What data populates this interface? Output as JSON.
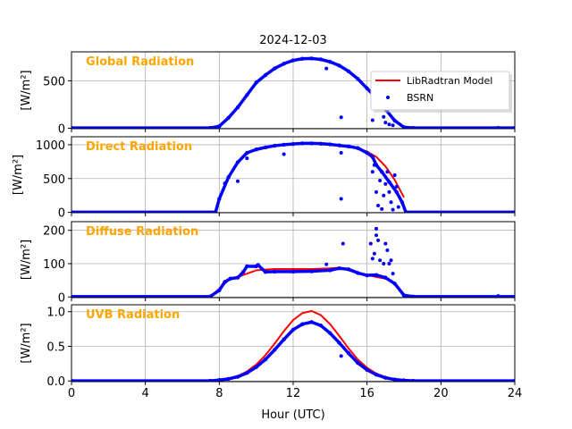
{
  "chart_data": {
    "type": "scatter",
    "title": "2024-12-03",
    "xlabel": "Hour (UTC)",
    "xlim": [
      0,
      24
    ],
    "xticks": [
      0,
      4,
      8,
      12,
      16,
      20,
      24
    ],
    "xtick_labels": [
      "0",
      "4",
      "8",
      "12",
      "16",
      "20",
      "24"
    ],
    "grid": true,
    "legend": {
      "placement": "upper-right of first panel",
      "entries": [
        "LibRadtran Model",
        "BSRN"
      ]
    },
    "colors": {
      "model": "#ff0000",
      "bsrn": "#0000ff",
      "panel_label": "#ffa500"
    },
    "panels": [
      {
        "name": "Global Radiation",
        "ylabel": "[W/m²]",
        "ylim": [
          -5,
          805
        ],
        "yticks": [
          0,
          500
        ],
        "ytick_labels": [
          "0",
          "500"
        ],
        "model": [
          [
            7.5,
            0
          ],
          [
            8,
            20
          ],
          [
            8.5,
            110
          ],
          [
            9,
            220
          ],
          [
            9.5,
            350
          ],
          [
            10,
            480
          ],
          [
            10.5,
            560
          ],
          [
            11,
            630
          ],
          [
            11.5,
            680
          ],
          [
            12,
            715
          ],
          [
            12.5,
            732
          ],
          [
            13,
            735
          ],
          [
            13.5,
            725
          ],
          [
            14,
            700
          ],
          [
            14.5,
            660
          ],
          [
            15,
            600
          ],
          [
            15.5,
            520
          ],
          [
            16,
            420
          ],
          [
            16.5,
            320
          ],
          [
            17,
            200
          ],
          [
            17.5,
            90
          ],
          [
            18,
            15
          ],
          [
            18.5,
            0
          ]
        ],
        "bsrn": [
          [
            0,
            3
          ],
          [
            7.5,
            3
          ],
          [
            8,
            20
          ],
          [
            8.5,
            110
          ],
          [
            9,
            220
          ],
          [
            9.5,
            350
          ],
          [
            10,
            480
          ],
          [
            10.5,
            560
          ],
          [
            11,
            630
          ],
          [
            11.5,
            680
          ],
          [
            12,
            715
          ],
          [
            12.5,
            732
          ],
          [
            13,
            735
          ],
          [
            13.5,
            725
          ],
          [
            14,
            700
          ],
          [
            14.5,
            660
          ],
          [
            15,
            600
          ],
          [
            15.5,
            520
          ],
          [
            16,
            420
          ],
          [
            16.5,
            320
          ],
          [
            17,
            200
          ],
          [
            17.5,
            80
          ],
          [
            18,
            10
          ],
          [
            18.5,
            3
          ],
          [
            24,
            3
          ]
        ],
        "bsrn_outliers": [
          [
            13.8,
            630
          ],
          [
            14.6,
            115
          ],
          [
            16.3,
            85
          ],
          [
            16.9,
            120
          ],
          [
            17.0,
            60
          ],
          [
            17.2,
            40
          ],
          [
            17.4,
            30
          ],
          [
            23.1,
            6
          ]
        ]
      },
      {
        "name": "Direct Radiation",
        "ylabel": "[W/m²]",
        "ylim": [
          -5,
          1118
        ],
        "yticks": [
          0,
          500,
          1000
        ],
        "ytick_labels": [
          "0",
          "500",
          "1000"
        ],
        "model": [
          [
            7.9,
            100
          ],
          [
            8,
            200
          ],
          [
            8.5,
            520
          ],
          [
            9,
            750
          ],
          [
            9.5,
            880
          ],
          [
            10,
            930
          ],
          [
            10.5,
            960
          ],
          [
            11,
            985
          ],
          [
            11.5,
            1000
          ],
          [
            12,
            1010
          ],
          [
            12.5,
            1020
          ],
          [
            13,
            1020
          ],
          [
            13.5,
            1015
          ],
          [
            14,
            1005
          ],
          [
            14.5,
            990
          ],
          [
            15,
            975
          ],
          [
            15.5,
            950
          ],
          [
            16,
            900
          ],
          [
            16.5,
            820
          ],
          [
            17,
            680
          ],
          [
            17.5,
            480
          ],
          [
            18,
            220
          ]
        ],
        "bsrn": [
          [
            0,
            3
          ],
          [
            7.8,
            3
          ],
          [
            8,
            200
          ],
          [
            8.5,
            520
          ],
          [
            9,
            740
          ],
          [
            9.5,
            880
          ],
          [
            10,
            930
          ],
          [
            10.5,
            960
          ],
          [
            11,
            985
          ],
          [
            11.5,
            1000
          ],
          [
            12,
            1010
          ],
          [
            12.5,
            1020
          ],
          [
            13,
            1020
          ],
          [
            13.5,
            1015
          ],
          [
            14,
            1005
          ],
          [
            14.5,
            990
          ],
          [
            15,
            975
          ],
          [
            15.5,
            950
          ],
          [
            16,
            880
          ],
          [
            16.3,
            820
          ],
          [
            16.5,
            700
          ],
          [
            16.8,
            600
          ],
          [
            17.2,
            450
          ],
          [
            17.6,
            300
          ],
          [
            17.9,
            150
          ],
          [
            18.1,
            3
          ],
          [
            24,
            3
          ]
        ],
        "bsrn_outliers": [
          [
            8.3,
            430
          ],
          [
            9,
            460
          ],
          [
            9.5,
            800
          ],
          [
            11.5,
            860
          ],
          [
            14.6,
            200
          ],
          [
            14.6,
            880
          ],
          [
            16.3,
            600
          ],
          [
            16.4,
            700
          ],
          [
            16.5,
            300
          ],
          [
            16.6,
            100
          ],
          [
            16.7,
            470
          ],
          [
            16.8,
            50
          ],
          [
            16.9,
            250
          ],
          [
            17.0,
            420
          ],
          [
            17.1,
            600
          ],
          [
            17.2,
            300
          ],
          [
            17.3,
            150
          ],
          [
            17.4,
            40
          ],
          [
            17.5,
            550
          ],
          [
            17.6,
            380
          ],
          [
            17.7,
            80
          ]
        ]
      },
      {
        "name": "Diffuse Radiation",
        "ylabel": "[W/m²]",
        "ylim": [
          -2,
          226
        ],
        "yticks": [
          0,
          100,
          200
        ],
        "ytick_labels": [
          "0",
          "100",
          "200"
        ],
        "model": [
          [
            7.5,
            0
          ],
          [
            8,
            25
          ],
          [
            8.5,
            50
          ],
          [
            9,
            60
          ],
          [
            9.5,
            70
          ],
          [
            10,
            80
          ],
          [
            10.5,
            82
          ],
          [
            11,
            84
          ],
          [
            12,
            84
          ],
          [
            13,
            84
          ],
          [
            14,
            86
          ],
          [
            14.5,
            88
          ],
          [
            15,
            80
          ],
          [
            15.5,
            72
          ],
          [
            16,
            66
          ],
          [
            16.5,
            60
          ],
          [
            17,
            55
          ],
          [
            17.5,
            40
          ],
          [
            18,
            5
          ],
          [
            18.5,
            0
          ]
        ],
        "bsrn": [
          [
            0,
            1
          ],
          [
            7.5,
            1
          ],
          [
            8,
            20
          ],
          [
            8.3,
            45
          ],
          [
            8.6,
            55
          ],
          [
            9,
            58
          ],
          [
            9.3,
            75
          ],
          [
            9.5,
            92
          ],
          [
            10,
            92
          ],
          [
            10.1,
            96
          ],
          [
            10.5,
            75
          ],
          [
            11,
            76
          ],
          [
            12,
            76
          ],
          [
            13,
            77
          ],
          [
            14,
            80
          ],
          [
            14.5,
            86
          ],
          [
            15,
            83
          ],
          [
            15.5,
            72
          ],
          [
            16,
            65
          ],
          [
            16.5,
            66
          ],
          [
            17,
            58
          ],
          [
            17.5,
            40
          ],
          [
            18,
            5
          ],
          [
            18.5,
            1
          ],
          [
            24,
            1
          ]
        ],
        "bsrn_outliers": [
          [
            13.8,
            98
          ],
          [
            14.7,
            160
          ],
          [
            16.2,
            160
          ],
          [
            16.3,
            115
          ],
          [
            16.4,
            130
          ],
          [
            16.5,
            205
          ],
          [
            16.5,
            185
          ],
          [
            16.6,
            170
          ],
          [
            16.7,
            110
          ],
          [
            16.9,
            100
          ],
          [
            17.0,
            160
          ],
          [
            17.1,
            140
          ],
          [
            17.2,
            100
          ],
          [
            17.3,
            110
          ],
          [
            17.4,
            70
          ],
          [
            23.1,
            3
          ]
        ]
      },
      {
        "name": "UVB Radiation",
        "ylabel": "[W/m²]",
        "ylim": [
          -0.01,
          1.1
        ],
        "yticks": [
          0,
          0.5,
          1.0
        ],
        "ytick_labels": [
          "0.0",
          "0.5",
          "1.0"
        ],
        "model": [
          [
            7.5,
            0.007
          ],
          [
            8,
            0.016
          ],
          [
            8.5,
            0.035
          ],
          [
            9,
            0.072
          ],
          [
            9.5,
            0.137
          ],
          [
            10,
            0.236
          ],
          [
            10.5,
            0.372
          ],
          [
            11,
            0.54
          ],
          [
            11.5,
            0.72
          ],
          [
            12,
            0.88
          ],
          [
            12.5,
            0.98
          ],
          [
            13,
            1.01
          ],
          [
            13.5,
            0.95
          ],
          [
            14,
            0.82
          ],
          [
            14.5,
            0.65
          ],
          [
            15,
            0.47
          ],
          [
            15.5,
            0.31
          ],
          [
            16,
            0.19
          ],
          [
            16.5,
            0.107
          ],
          [
            17,
            0.055
          ],
          [
            17.5,
            0.026
          ],
          [
            18,
            0.01
          ],
          [
            18.5,
            0
          ]
        ],
        "bsrn": [
          [
            0,
            0.002
          ],
          [
            7.5,
            0.002
          ],
          [
            8,
            0.013
          ],
          [
            8.5,
            0.03
          ],
          [
            9,
            0.06
          ],
          [
            9.5,
            0.115
          ],
          [
            10,
            0.2
          ],
          [
            10.5,
            0.31
          ],
          [
            11,
            0.45
          ],
          [
            11.5,
            0.6
          ],
          [
            12,
            0.74
          ],
          [
            12.5,
            0.82
          ],
          [
            13,
            0.85
          ],
          [
            13.5,
            0.8
          ],
          [
            14,
            0.69
          ],
          [
            14.5,
            0.55
          ],
          [
            15,
            0.4
          ],
          [
            15.5,
            0.26
          ],
          [
            16,
            0.16
          ],
          [
            16.5,
            0.09
          ],
          [
            17,
            0.046
          ],
          [
            17.5,
            0.02
          ],
          [
            18,
            0.008
          ],
          [
            18.5,
            0.002
          ],
          [
            24,
            0.002
          ]
        ],
        "bsrn_outliers": [
          [
            14.6,
            0.36
          ]
        ]
      }
    ]
  }
}
